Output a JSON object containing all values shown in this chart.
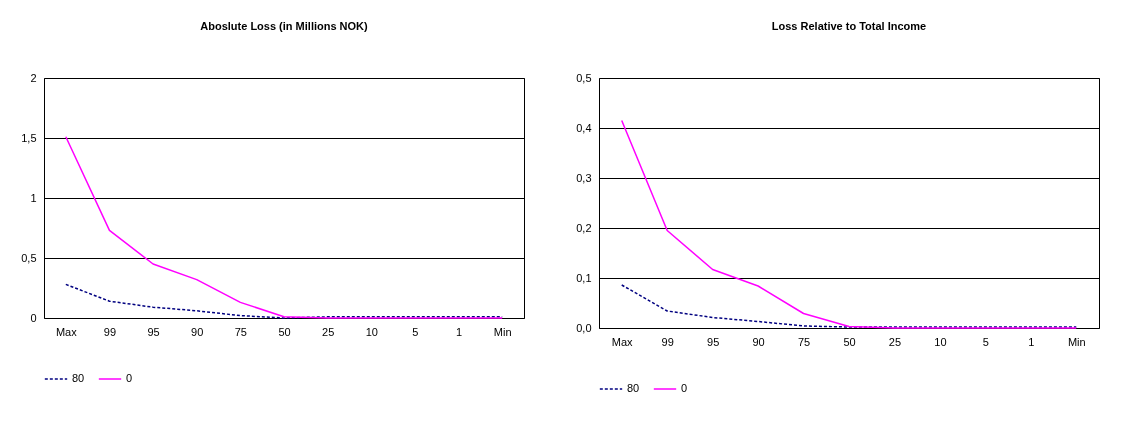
{
  "chart_data": [
    {
      "type": "line",
      "title": "Aboslute Loss (in Millions NOK)",
      "categories": [
        "Max",
        "99",
        "95",
        "90",
        "75",
        "50",
        "25",
        "10",
        "5",
        "1",
        "Min"
      ],
      "series": [
        {
          "name": "80",
          "color": "#000080",
          "line_style": "dashed",
          "values": [
            0.28,
            0.14,
            0.09,
            0.06,
            0.02,
            0.0,
            0.01,
            0.01,
            0.01,
            0.01,
            0.01
          ]
        },
        {
          "name": "0",
          "color": "#ff00ff",
          "line_style": "solid",
          "values": [
            1.51,
            0.73,
            0.45,
            0.32,
            0.13,
            0.01,
            0,
            0,
            0,
            0,
            0
          ]
        }
      ],
      "ylim": [
        0,
        2
      ],
      "yticks": [
        {
          "value": 0,
          "label": "0"
        },
        {
          "value": 0.5,
          "label": "0,5"
        },
        {
          "value": 1,
          "label": "1"
        },
        {
          "value": 1.5,
          "label": "1,5"
        },
        {
          "value": 2,
          "label": "2"
        }
      ],
      "grid": "y",
      "legend": "bottom",
      "marker": "none"
    },
    {
      "type": "line",
      "title": "Loss Relative to Total Income",
      "categories": [
        "Max",
        "99",
        "95",
        "90",
        "75",
        "50",
        "25",
        "10",
        "5",
        "1",
        "Min"
      ],
      "series": [
        {
          "name": "80",
          "color": "#000080",
          "line_style": "dashed",
          "values": [
            0.086,
            0.034,
            0.021,
            0.013,
            0.004,
            0.002,
            0.002,
            0.002,
            0.002,
            0.002,
            0.002
          ]
        },
        {
          "name": "0",
          "color": "#ff00ff",
          "line_style": "solid",
          "values": [
            0.415,
            0.195,
            0.117,
            0.084,
            0.029,
            0.003,
            0,
            0,
            0,
            0,
            0
          ]
        }
      ],
      "ylim": [
        0,
        0.5
      ],
      "yticks": [
        {
          "value": 0,
          "label": "0,0"
        },
        {
          "value": 0.1,
          "label": "0,1"
        },
        {
          "value": 0.2,
          "label": "0,2"
        },
        {
          "value": 0.3,
          "label": "0,3"
        },
        {
          "value": 0.4,
          "label": "0,4"
        },
        {
          "value": 0.5,
          "label": "0,5"
        }
      ],
      "grid": "y",
      "legend": "bottom",
      "marker": "none"
    }
  ]
}
